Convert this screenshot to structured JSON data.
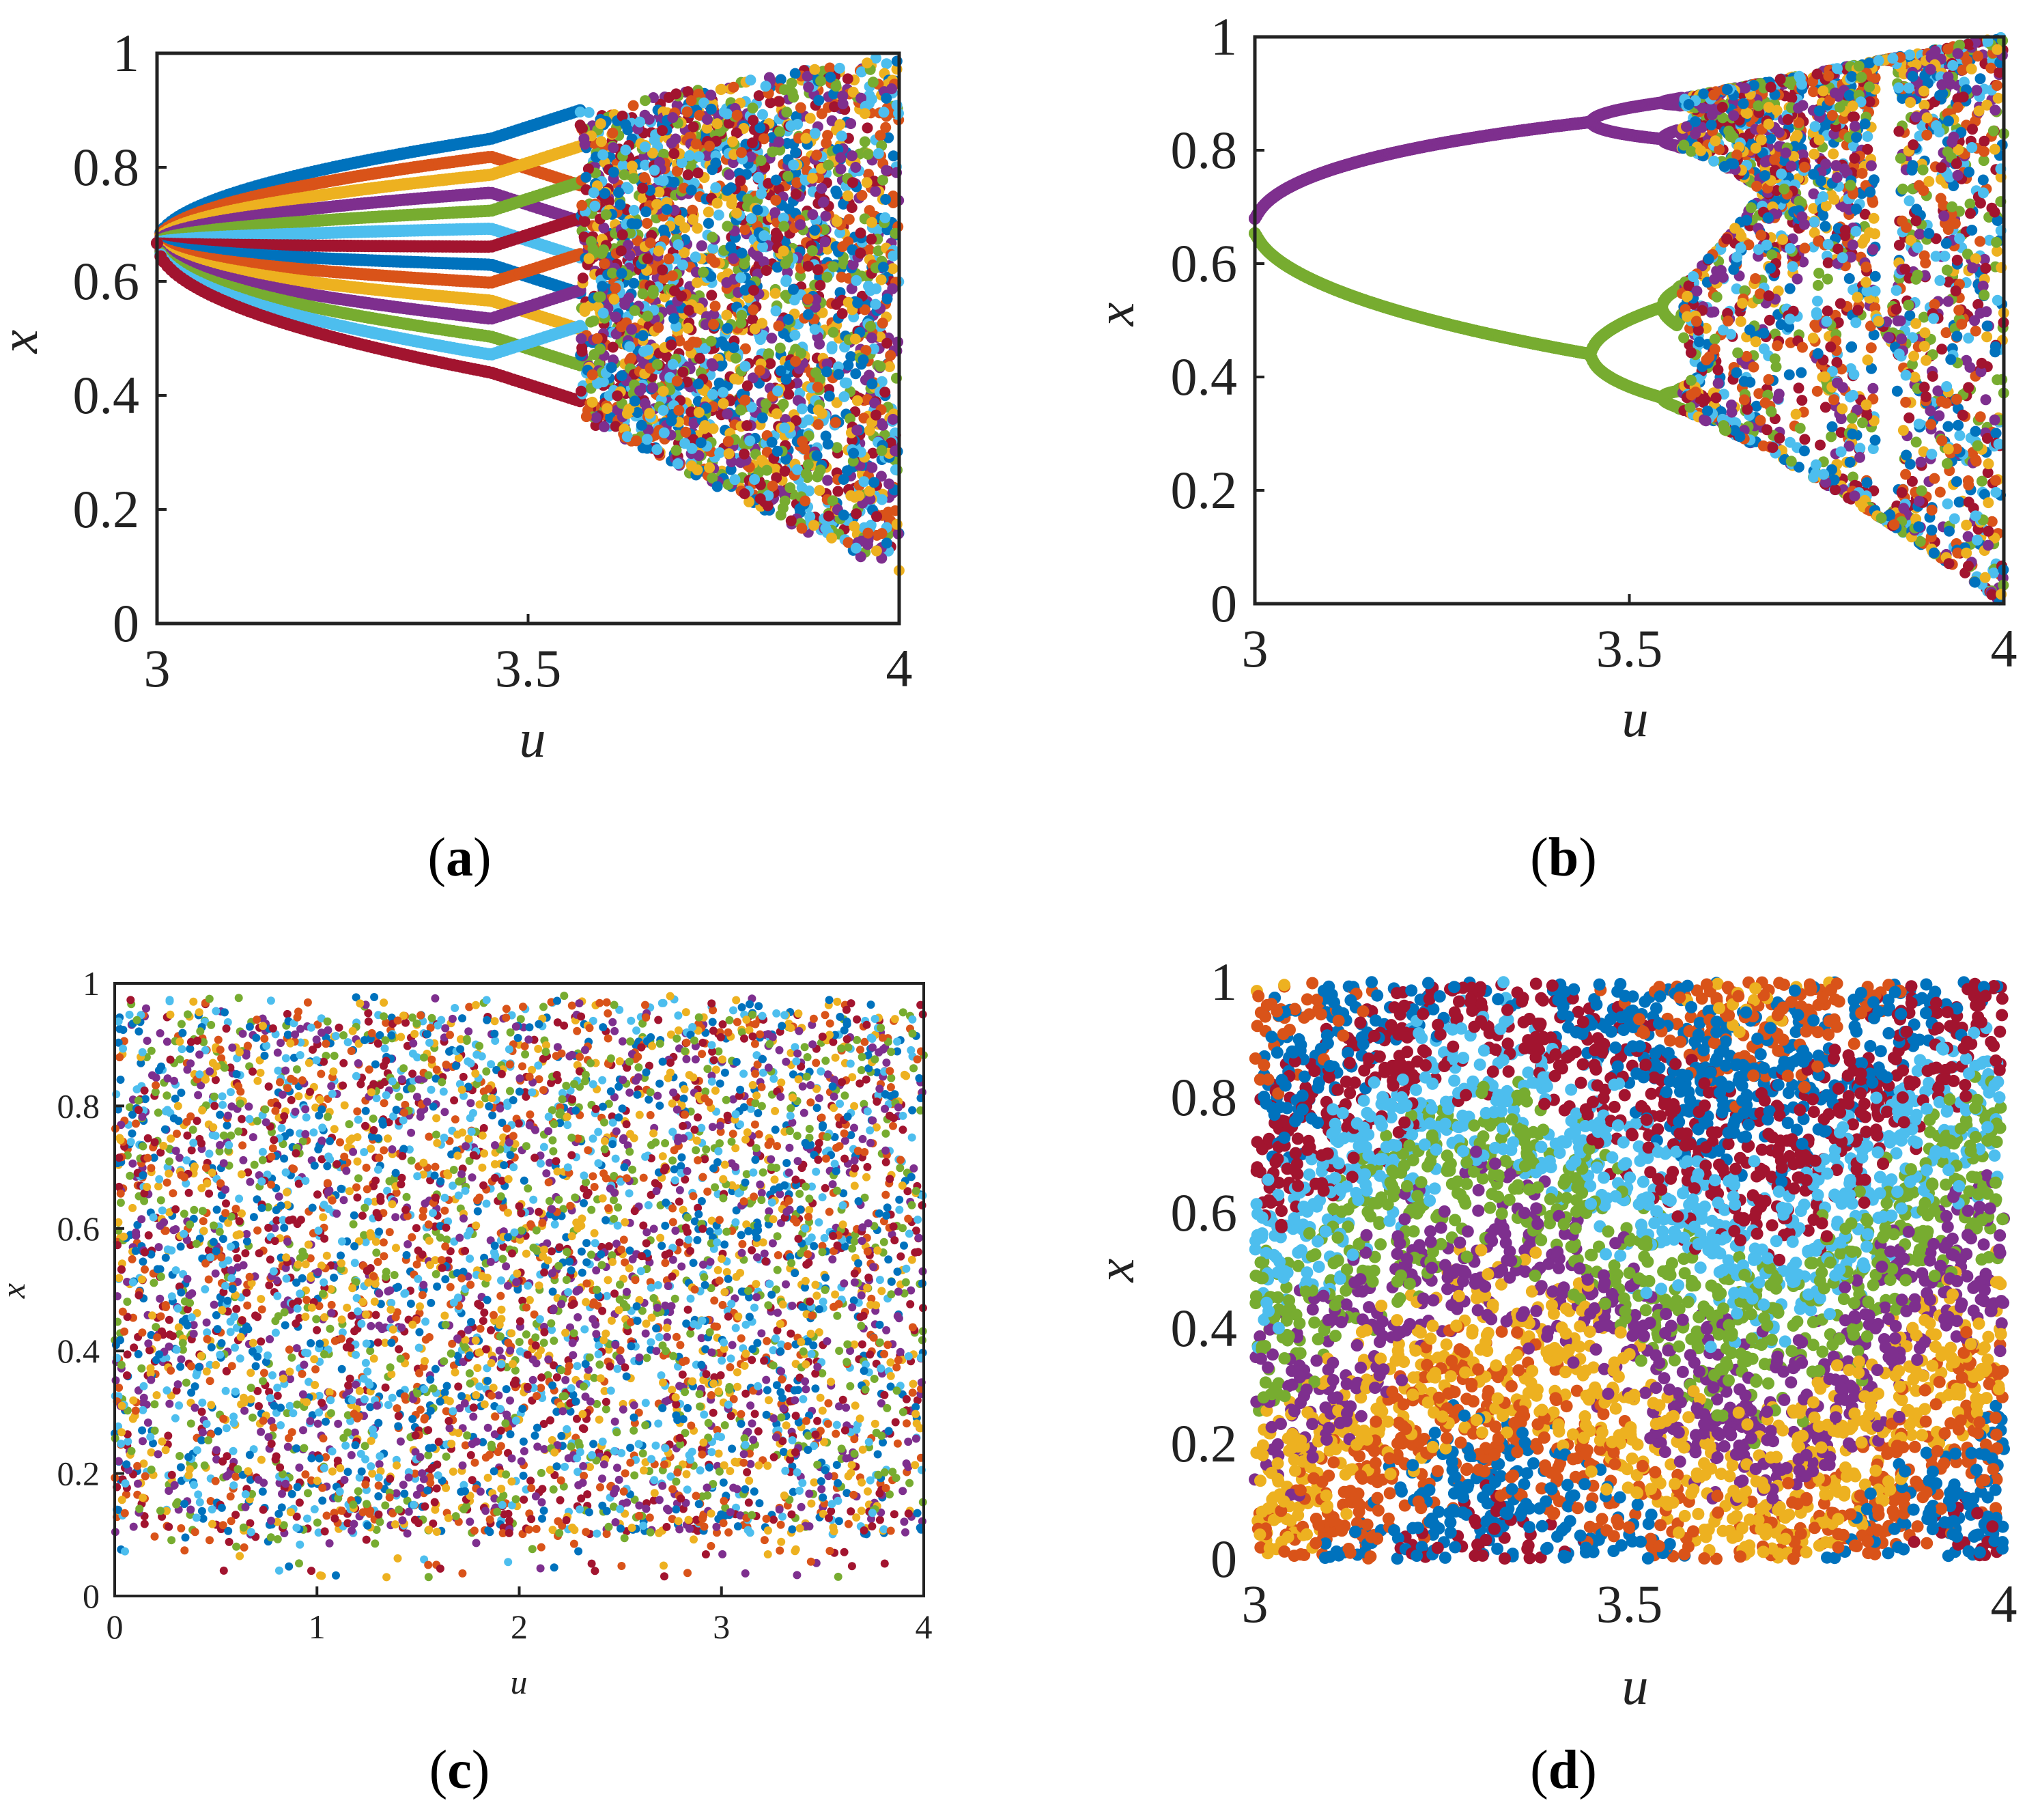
{
  "palette": [
    "#0072BD",
    "#D95319",
    "#EDB120",
    "#7E2F8E",
    "#77AC30",
    "#4DBEEE",
    "#A2142F"
  ],
  "chart_data": [
    {
      "id": "a",
      "type": "scatter",
      "panel_label": "a",
      "xlabel": "u",
      "ylabel": "x",
      "xlim": [
        3,
        4
      ],
      "ylim": [
        0,
        1
      ],
      "xticks": [
        "3",
        "3.5",
        "4"
      ],
      "xtick_values": [
        3,
        3.5,
        4
      ],
      "yticks": [
        "0",
        "0.2",
        "0.4",
        "0.6",
        "0.8",
        "1"
      ],
      "ytick_values": [
        0,
        0.2,
        0.4,
        0.6,
        0.8,
        1
      ],
      "series_count": 14,
      "bifurcation_point": [
        3.0,
        0.667
      ],
      "period_two_upper_at_u_3_45": 0.85,
      "period_two_lower_at_u_3_45": 0.44,
      "chaos_onset_u": 3.57,
      "chaos_envelope_at_u_4": [
        0.08,
        1.0
      ],
      "description_note": ""
    },
    {
      "id": "b",
      "type": "scatter",
      "panel_label": "b",
      "xlabel": "u",
      "ylabel": "x",
      "xlim": [
        3,
        4
      ],
      "ylim": [
        0,
        1
      ],
      "xticks": [
        "3",
        "3.5",
        "4"
      ],
      "xtick_values": [
        3,
        3.5,
        4
      ],
      "yticks": [
        "0",
        "0.2",
        "0.4",
        "0.6",
        "0.8",
        "1"
      ],
      "ytick_values": [
        0,
        0.2,
        0.4,
        0.6,
        0.8,
        1
      ],
      "bifurcation_point": [
        3.0,
        0.667
      ],
      "period_two_upper_at_u_3_45": 0.85,
      "period_two_lower_at_u_3_45": 0.44,
      "chaos_onset_u": 3.57,
      "window_u": 3.74,
      "chaos_envelope_at_u_4": [
        0.1,
        1.0
      ]
    },
    {
      "id": "c",
      "type": "scatter",
      "panel_label": "c",
      "xlabel": "u",
      "ylabel": "x",
      "xlim": [
        0,
        4
      ],
      "ylim": [
        0,
        1
      ],
      "xticks": [
        "0",
        "1",
        "2",
        "3",
        "4"
      ],
      "xtick_values": [
        0,
        1,
        2,
        3,
        4
      ],
      "yticks": [
        "0",
        "0.2",
        "0.4",
        "0.6",
        "0.8",
        "1"
      ],
      "ytick_values": [
        0,
        0.2,
        0.4,
        0.6,
        0.8,
        1
      ],
      "band_range": [
        0.1,
        0.95
      ]
    },
    {
      "id": "d",
      "type": "scatter",
      "panel_label": "d",
      "xlabel": "u",
      "ylabel": "x",
      "xlim": [
        3,
        4
      ],
      "ylim": [
        0,
        1
      ],
      "xticks": [
        "3",
        "3.5",
        "4"
      ],
      "xtick_values": [
        3,
        3.5,
        4
      ],
      "yticks": [
        "0",
        "0.2",
        "0.4",
        "0.6",
        "0.8",
        "1"
      ],
      "ytick_values": [
        0,
        0.2,
        0.4,
        0.6,
        0.8,
        1
      ],
      "band_range": [
        0.0,
        1.0
      ]
    }
  ]
}
